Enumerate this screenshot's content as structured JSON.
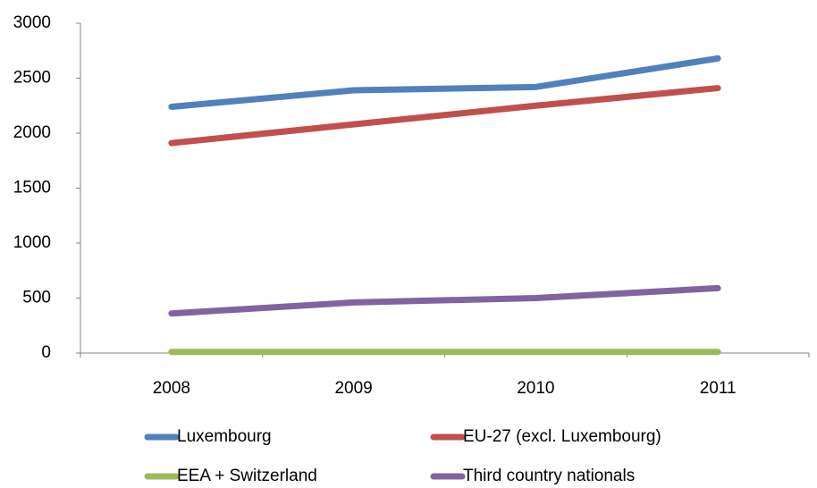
{
  "chart_data": {
    "type": "line",
    "categories": [
      "2008",
      "2009",
      "2010",
      "2011"
    ],
    "series": [
      {
        "name": "Luxembourg",
        "color": "#4f81bd",
        "values": [
          2240,
          2390,
          2420,
          2680
        ]
      },
      {
        "name": "EU-27 (excl. Luxembourg)",
        "color": "#c0504d",
        "values": [
          1910,
          2080,
          2250,
          2410
        ]
      },
      {
        "name": "EEA + Switzerland",
        "color": "#9bbb59",
        "values": [
          10,
          10,
          10,
          10
        ]
      },
      {
        "name": "Third country nationals",
        "color": "#8064a2",
        "values": [
          360,
          460,
          500,
          590
        ]
      }
    ],
    "ylim": [
      0,
      3000
    ],
    "yticks": [
      0,
      500,
      1000,
      1500,
      2000,
      2500,
      3000
    ],
    "grid": false,
    "legend": "bottom"
  }
}
